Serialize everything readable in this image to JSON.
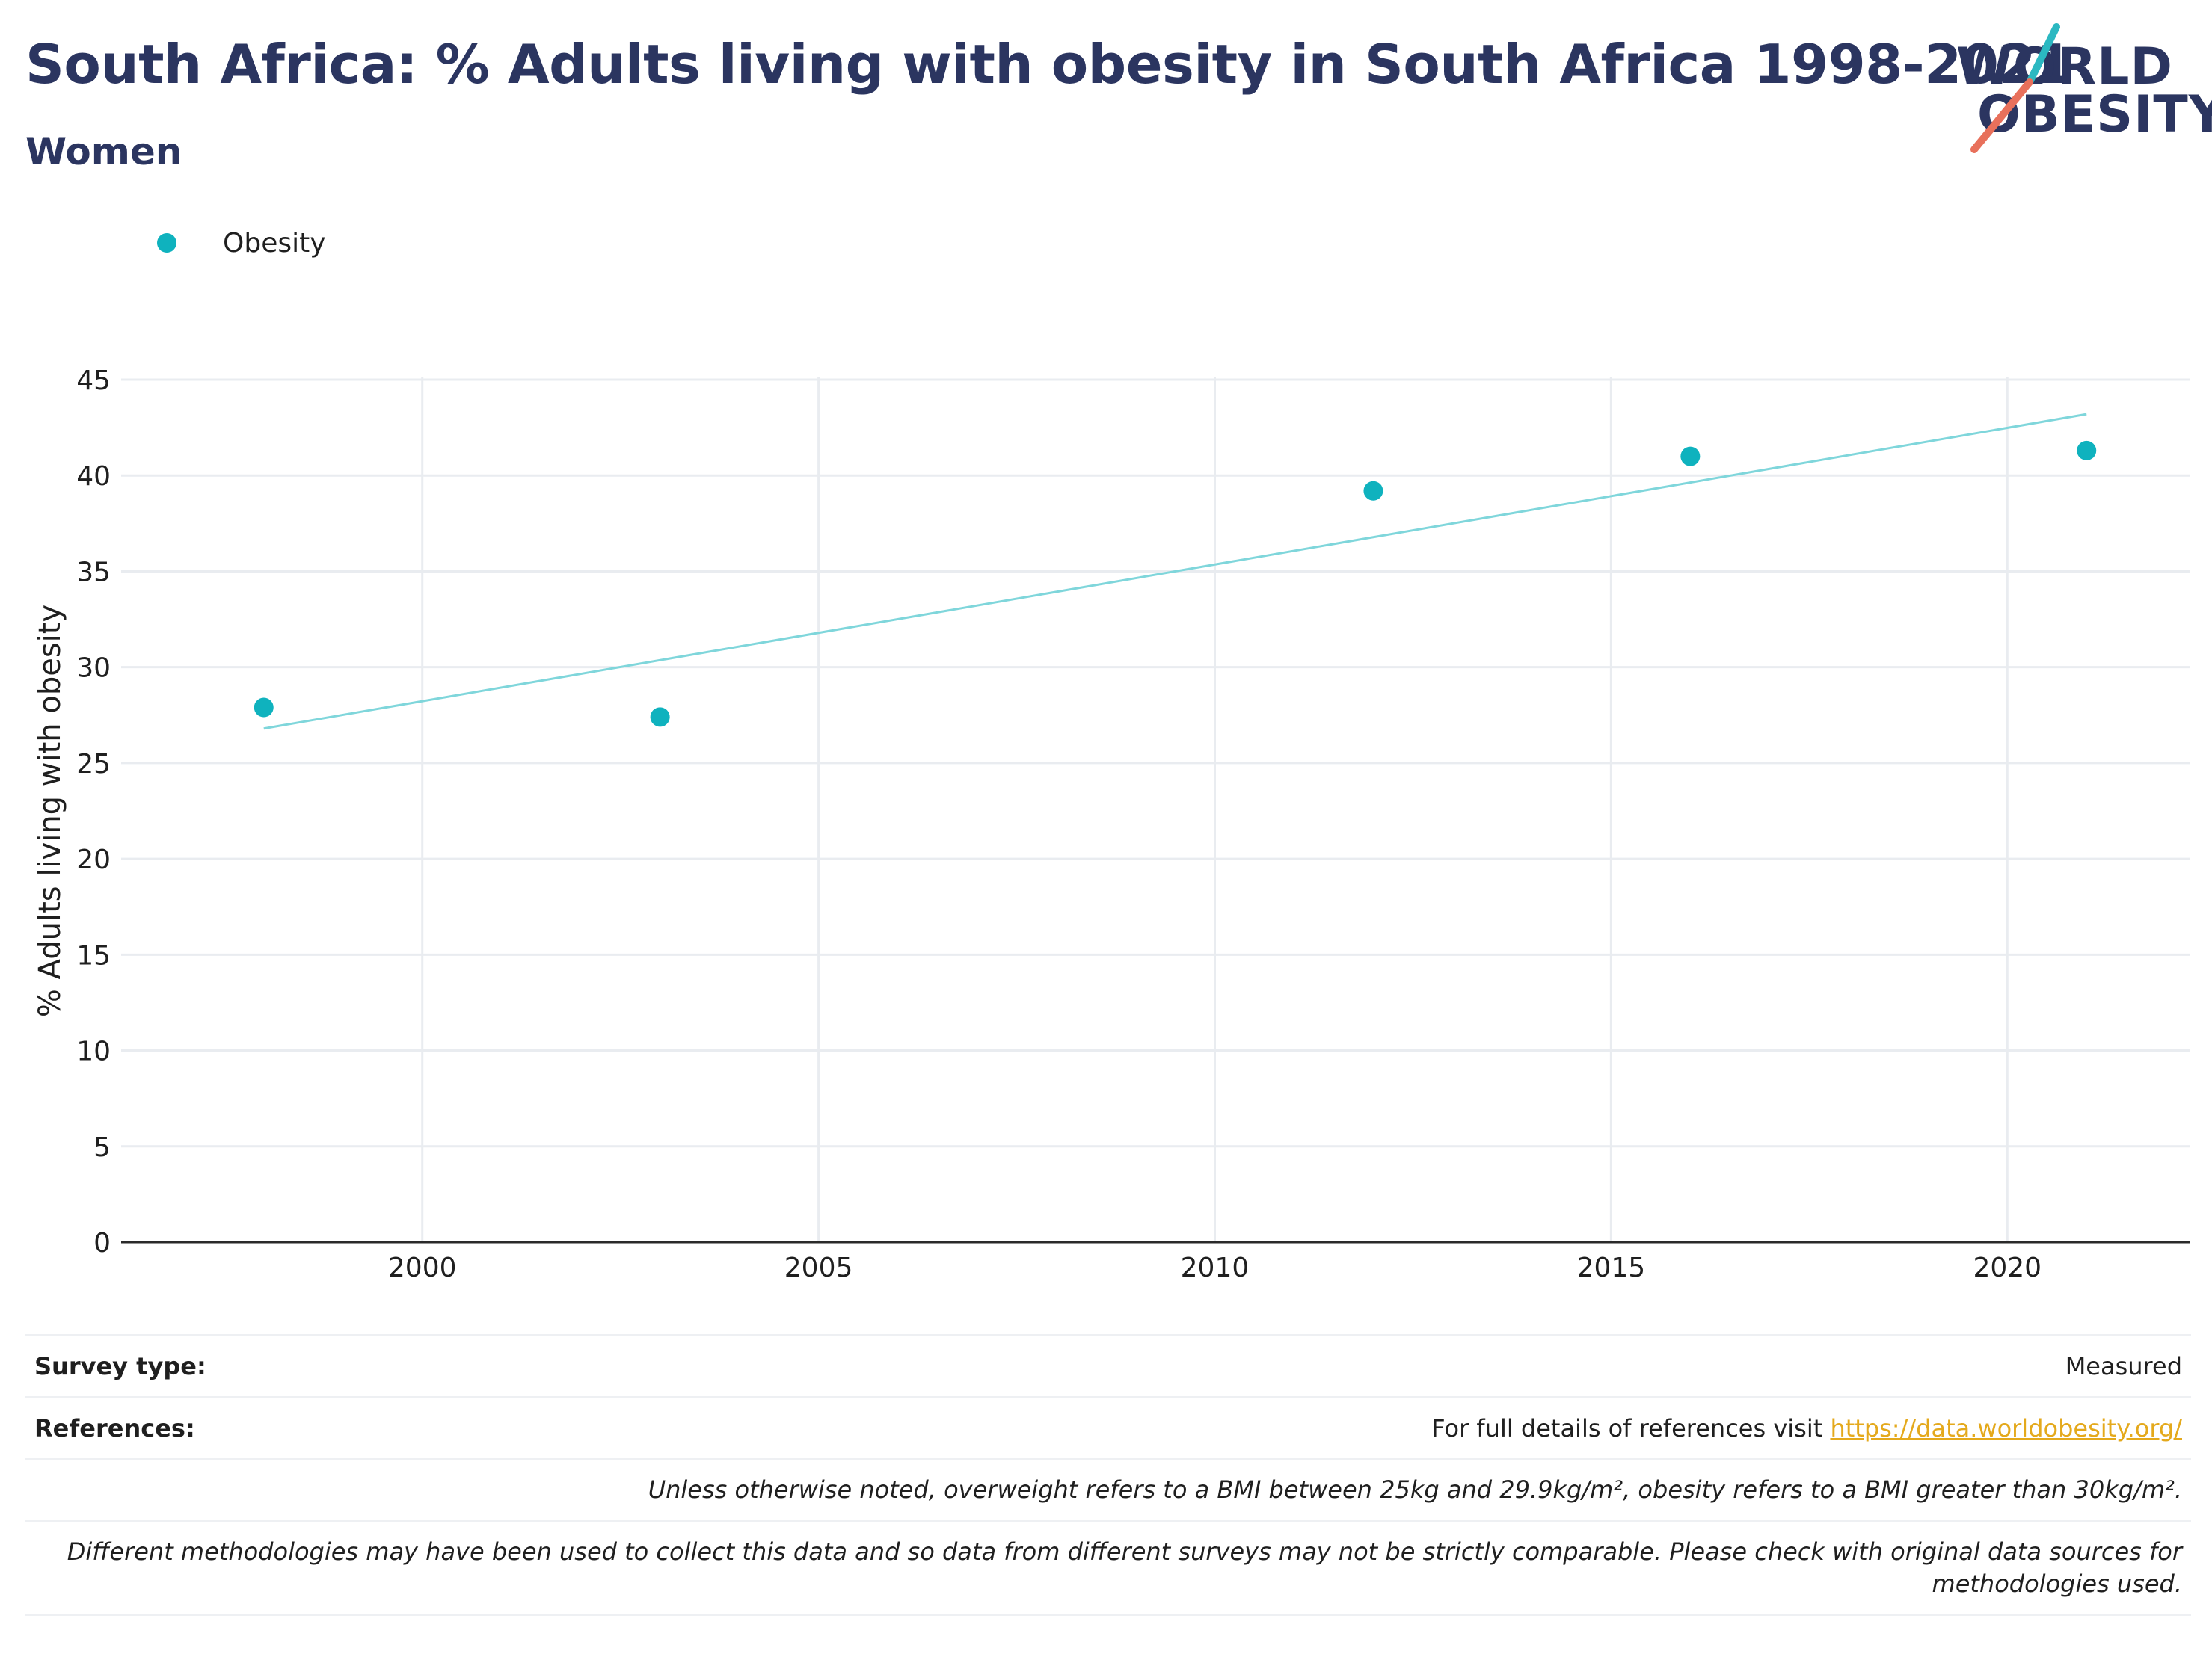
{
  "header": {
    "title": "South Africa: % Adults living with obesity in South Africa 1998-2021",
    "subtitle": "Women"
  },
  "logo": {
    "line1": "WORLD",
    "line2": "OBESITY",
    "colors": {
      "navy": "#2b3560",
      "teal": "#2bb8c1",
      "coral": "#e8705b"
    }
  },
  "legend": {
    "label": "Obesity",
    "color": "#0fb2be"
  },
  "chart_data": {
    "type": "scatter",
    "title": "",
    "xlabel": "",
    "ylabel": "% Adults living with obesity",
    "xlim": [
      1996.2,
      2022.3
    ],
    "ylim": [
      0,
      45
    ],
    "x_ticks": [
      2000,
      2005,
      2010,
      2015,
      2020
    ],
    "y_ticks": [
      0,
      5,
      10,
      15,
      20,
      25,
      30,
      35,
      40,
      45
    ],
    "grid": true,
    "legend_position": "top-left",
    "series": [
      {
        "name": "Obesity",
        "color": "#0fb2be",
        "x": [
          1998,
          2003,
          2012,
          2016,
          2021
        ],
        "y": [
          27.9,
          27.4,
          39.2,
          41.0,
          41.3
        ]
      }
    ],
    "trendline": {
      "color": "#7fd6db",
      "x": [
        1998,
        2021
      ],
      "y": [
        26.8,
        43.2
      ]
    }
  },
  "footer": {
    "survey_type_label": "Survey type:",
    "survey_type_value": "Measured",
    "references_label": "References:",
    "references_text": "For full details of references visit ",
    "references_link": "https://data.worldobesity.org/",
    "bmi_note": "Unless otherwise noted, overweight refers to a BMI between 25kg and 29.9kg/m², obesity refers to a BMI greater than 30kg/m².",
    "methodology_note": "Different methodologies may have been used to collect this data and so data from different surveys may not be strictly comparable. Please check with original data sources for methodologies used."
  }
}
